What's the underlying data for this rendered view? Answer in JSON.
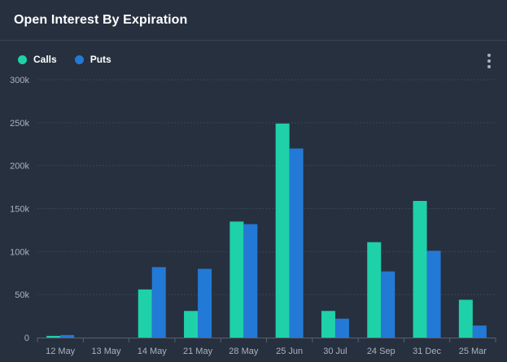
{
  "title": "Open Interest By Expiration",
  "colors": {
    "calls": "#1fd1a8",
    "puts": "#2379d6",
    "grid": "#3a4556",
    "axis": "#566072"
  },
  "chart_data": {
    "type": "bar",
    "title": "Open Interest By Expiration",
    "categories": [
      "12 May",
      "13 May",
      "14 May",
      "21 May",
      "28 May",
      "25 Jun",
      "30 Jul",
      "24 Sep",
      "31 Dec",
      "25 Mar"
    ],
    "series": [
      {
        "name": "Calls",
        "values": [
          2000,
          0,
          56000,
          31000,
          135000,
          249000,
          31000,
          111000,
          159000,
          44000
        ]
      },
      {
        "name": "Puts",
        "values": [
          3000,
          0,
          82000,
          80000,
          132000,
          220000,
          22000,
          77000,
          101000,
          14000
        ]
      }
    ],
    "yticks": [
      "0",
      "50k",
      "100k",
      "150k",
      "200k",
      "250k",
      "300k"
    ],
    "ylim": [
      0,
      300000
    ],
    "xlabel": "",
    "ylabel": "",
    "grid": true,
    "legend": "top-left"
  }
}
